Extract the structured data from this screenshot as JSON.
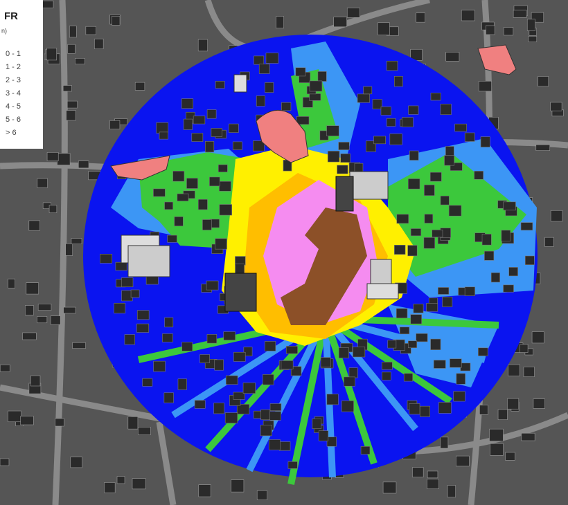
{
  "legend": {
    "title": "FR",
    "unit": "n)",
    "items": [
      {
        "label": "0 - 1",
        "color": "#0a14f0"
      },
      {
        "label": "1 - 2",
        "color": "#3c96f5"
      },
      {
        "label": "2 - 3",
        "color": "#3cc83c"
      },
      {
        "label": "3 - 4",
        "color": "#fff000"
      },
      {
        "label": "4 - 5",
        "color": "#ffbe00"
      },
      {
        "label": "5 - 6",
        "color": "#f58cf0"
      },
      {
        "label": "> 6",
        "color": "#8c5028"
      }
    ]
  }
}
